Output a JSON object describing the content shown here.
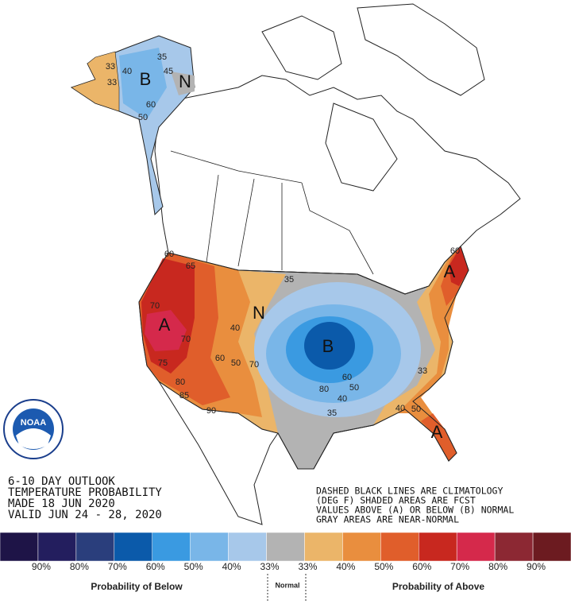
{
  "header": {
    "lines": [
      "6-10 DAY OUTLOOK",
      "TEMPERATURE PROBABILITY",
      "MADE  18 JUN 2020",
      "VALID  JUN 24 - 28, 2020"
    ]
  },
  "notes": [
    "DASHED BLACK LINES ARE CLIMATOLOGY",
    "(DEG F) SHADED AREAS ARE FCST",
    "VALUES ABOVE (A) OR BELOW (B) NORMAL",
    "GRAY AREAS ARE NEAR-NORMAL"
  ],
  "logo": {
    "name": "NOAA"
  },
  "map_labels": [
    "A",
    "B",
    "N",
    "A",
    "A",
    "B",
    "N",
    "70",
    "70",
    "75",
    "80",
    "85",
    "90",
    "65",
    "60",
    "40",
    "60",
    "50",
    "70",
    "35",
    "60",
    "50",
    "80",
    "40",
    "35",
    "33",
    "40",
    "50",
    "60",
    "33",
    "33",
    "40",
    "45",
    "35",
    "60",
    "50"
  ],
  "legend": {
    "colors": [
      "#1e1447",
      "#231e5e",
      "#2a3e7c",
      "#0b5aaa",
      "#3a9ae1",
      "#79b6e8",
      "#a7c8ea",
      "#b3b3b3",
      "#ebb569",
      "#e98e3e",
      "#e05e2b",
      "#c8281f",
      "#d5294b",
      "#8c2833",
      "#6c1b20"
    ],
    "labels": [
      "90%",
      "80%",
      "70%",
      "60%",
      "50%",
      "40%",
      "33%",
      "33%",
      "40%",
      "50%",
      "60%",
      "70%",
      "80%",
      "90%"
    ],
    "below": "Probability of Below",
    "normal": "Normal",
    "above": "Probability of Above"
  }
}
